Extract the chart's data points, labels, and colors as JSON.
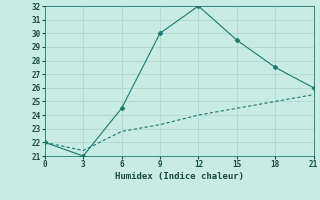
{
  "line1_x": [
    0,
    3,
    6,
    9,
    12,
    15,
    18,
    21
  ],
  "line1_y": [
    22,
    21,
    24.5,
    30,
    32,
    29.5,
    27.5,
    26
  ],
  "line2_x": [
    0,
    3,
    6,
    9,
    12,
    15,
    18,
    21
  ],
  "line2_y": [
    22,
    21.4,
    22.8,
    23.3,
    24.0,
    24.5,
    25.0,
    25.5
  ],
  "xlabel": "Humidex (Indice chaleur)",
  "xlim": [
    0,
    21
  ],
  "ylim": [
    21,
    32
  ],
  "xticks": [
    0,
    3,
    6,
    9,
    12,
    15,
    18,
    21
  ],
  "yticks": [
    21,
    22,
    23,
    24,
    25,
    26,
    27,
    28,
    29,
    30,
    31,
    32
  ],
  "line_color": "#1a7a6e",
  "bg_color": "#c8ebe4",
  "grid_color": "#b0d8d0"
}
